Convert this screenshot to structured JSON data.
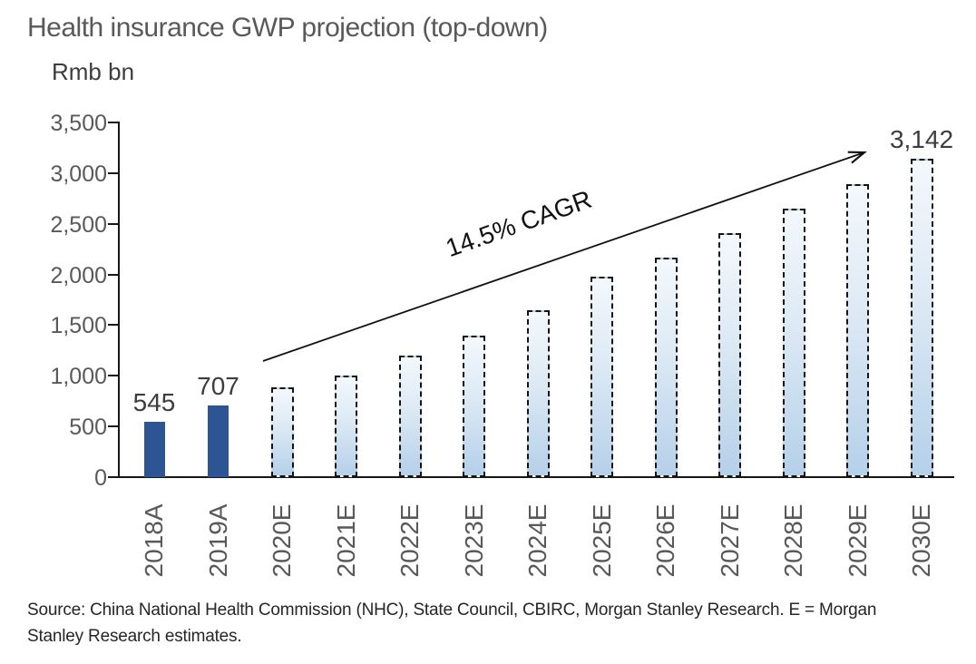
{
  "title": "Health insurance GWP projection (top-down)",
  "axis_unit_label": "Rmb bn",
  "cagr_annotation": "14.5% CAGR",
  "source_note": "Source: China National Health Commission (NHC), State Council, CBIRC, Morgan Stanley Research. E = Morgan Stanley Research estimates.",
  "colors": {
    "actual_bar_fill": "#2d5594",
    "estimate_bar_fill_top": "#f3f8fc",
    "estimate_bar_fill_bottom": "#b5d0e9",
    "estimate_bar_border": "#141414",
    "axis": "#161616",
    "axis_tick_label": "#595959",
    "data_label": "#3d3d3d",
    "title_text": "#595959"
  },
  "chart_data": {
    "type": "bar",
    "title": "Health insurance GWP projection (top-down)",
    "ylabel": "Rmb bn",
    "xlabel": "",
    "ylim": [
      0,
      3500
    ],
    "ytick_interval": 500,
    "ytick_labels_top_down": [
      "3,500",
      "3,000",
      "2,500",
      "2,000",
      "1,500",
      "1,000",
      "500",
      "0"
    ],
    "categories": [
      "2018A",
      "2019A",
      "2020E",
      "2021E",
      "2022E",
      "2023E",
      "2024E",
      "2025E",
      "2026E",
      "2027E",
      "2028E",
      "2029E",
      "2030E"
    ],
    "values": [
      545,
      707,
      890,
      1000,
      1200,
      1400,
      1650,
      1980,
      2170,
      2410,
      2650,
      2890,
      3142
    ],
    "actual_count": 2,
    "data_labels": {
      "2018A": "545",
      "2019A": "707",
      "2030E": "3,142"
    },
    "annotation": {
      "text": "14.5% CAGR",
      "type": "trend-arrow"
    },
    "grid": false,
    "legend": false
  }
}
